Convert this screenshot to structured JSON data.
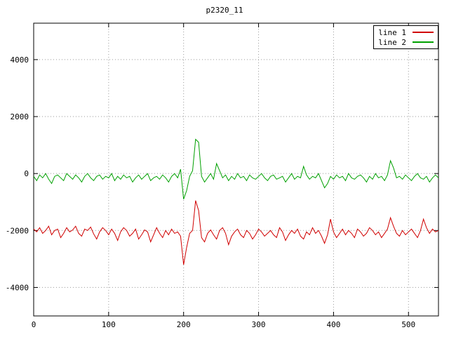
{
  "title": "p2320_11",
  "chart_data": {
    "type": "line",
    "title": "p2320_11",
    "xlabel": "",
    "ylabel": "",
    "xlim": [
      0,
      540
    ],
    "ylim": [
      -5000,
      5280
    ],
    "xticks": [
      0,
      100,
      200,
      300,
      400,
      500
    ],
    "yticks": [
      -4000,
      -2000,
      0,
      2000,
      4000
    ],
    "grid": true,
    "grid_color": "#9a9a9a",
    "legend_position": "top-right",
    "x": [
      0,
      4,
      8,
      12,
      16,
      20,
      24,
      28,
      32,
      36,
      40,
      44,
      48,
      52,
      56,
      60,
      64,
      68,
      72,
      76,
      80,
      84,
      88,
      92,
      96,
      100,
      104,
      108,
      112,
      116,
      120,
      124,
      128,
      132,
      136,
      140,
      144,
      148,
      152,
      156,
      160,
      164,
      168,
      172,
      176,
      180,
      184,
      188,
      192,
      196,
      200,
      204,
      208,
      212,
      216,
      220,
      224,
      228,
      232,
      236,
      240,
      244,
      248,
      252,
      256,
      260,
      264,
      268,
      272,
      276,
      280,
      284,
      288,
      292,
      296,
      300,
      304,
      308,
      312,
      316,
      320,
      324,
      328,
      332,
      336,
      340,
      344,
      348,
      352,
      356,
      360,
      364,
      368,
      372,
      376,
      380,
      384,
      388,
      392,
      396,
      400,
      404,
      408,
      412,
      416,
      420,
      424,
      428,
      432,
      436,
      440,
      444,
      448,
      452,
      456,
      460,
      464,
      468,
      472,
      476,
      480,
      484,
      488,
      492,
      496,
      500,
      504,
      508,
      512,
      516,
      520,
      524,
      528,
      532,
      536,
      540
    ],
    "series": [
      {
        "name": "line 1",
        "color": "#d00000",
        "values": [
          -1950,
          -2050,
          -1900,
          -2100,
          -2000,
          -1850,
          -2150,
          -2000,
          -1950,
          -2250,
          -2100,
          -1900,
          -2050,
          -1980,
          -1850,
          -2100,
          -2200,
          -1950,
          -2000,
          -1880,
          -2120,
          -2300,
          -2050,
          -1900,
          -2000,
          -2150,
          -1950,
          -2100,
          -2350,
          -2050,
          -1900,
          -2000,
          -2200,
          -2100,
          -1950,
          -2300,
          -2150,
          -1980,
          -2050,
          -2400,
          -2150,
          -1900,
          -2100,
          -2250,
          -2000,
          -2150,
          -1950,
          -2100,
          -2050,
          -2200,
          -3200,
          -2600,
          -2100,
          -2000,
          -950,
          -1300,
          -2250,
          -2400,
          -2100,
          -1980,
          -2150,
          -2300,
          -2000,
          -1900,
          -2100,
          -2500,
          -2200,
          -2050,
          -1950,
          -2150,
          -2250,
          -2000,
          -2100,
          -2300,
          -2150,
          -1950,
          -2050,
          -2200,
          -2100,
          -2000,
          -2150,
          -2250,
          -1900,
          -2050,
          -2350,
          -2150,
          -2000,
          -2100,
          -1950,
          -2200,
          -2300,
          -2050,
          -2150,
          -1900,
          -2100,
          -2000,
          -2200,
          -2450,
          -2150,
          -1600,
          -2050,
          -2250,
          -2100,
          -1950,
          -2150,
          -2000,
          -2100,
          -2250,
          -1950,
          -2050,
          -2200,
          -2100,
          -1900,
          -2000,
          -2150,
          -2050,
          -2250,
          -2100,
          -1950,
          -1550,
          -1850,
          -2100,
          -2200,
          -2000,
          -2150,
          -2050,
          -1950,
          -2100,
          -2250,
          -2000,
          -1600,
          -1900,
          -2100,
          -1950,
          -2050,
          -2000
        ]
      },
      {
        "name": "line 2",
        "color": "#00a000",
        "values": [
          -100,
          -250,
          -50,
          -150,
          0,
          -200,
          -350,
          -100,
          -50,
          -150,
          -250,
          0,
          -100,
          -200,
          -50,
          -150,
          -300,
          -100,
          0,
          -150,
          -250,
          -100,
          -50,
          -200,
          -100,
          -150,
          0,
          -250,
          -100,
          -200,
          -50,
          -150,
          -100,
          -300,
          -150,
          -50,
          -200,
          -100,
          0,
          -250,
          -150,
          -100,
          -200,
          -50,
          -150,
          -300,
          -100,
          0,
          -150,
          150,
          -900,
          -600,
          -100,
          100,
          1200,
          1100,
          -100,
          -300,
          -150,
          0,
          -200,
          350,
          100,
          -150,
          -50,
          -250,
          -100,
          -200,
          0,
          -150,
          -100,
          -250,
          -50,
          -150,
          -200,
          -100,
          0,
          -150,
          -250,
          -100,
          -50,
          -200,
          -150,
          -100,
          -300,
          -150,
          0,
          -200,
          -100,
          -150,
          250,
          -50,
          -200,
          -100,
          -150,
          0,
          -250,
          -500,
          -350,
          -100,
          -200,
          -50,
          -150,
          -100,
          -250,
          0,
          -150,
          -200,
          -100,
          -50,
          -150,
          -300,
          -100,
          -200,
          0,
          -150,
          -100,
          -250,
          -50,
          450,
          200,
          -150,
          -100,
          -200,
          -50,
          -150,
          -250,
          -100,
          0,
          -150,
          -200,
          -100,
          -300,
          -150,
          -50,
          -150
        ]
      }
    ]
  }
}
